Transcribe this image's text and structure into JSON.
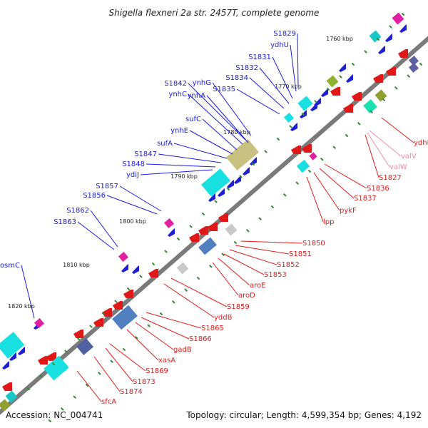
{
  "title": "Shigella flexneri 2a str. 2457T, complete genome",
  "footer": {
    "accession": "Accession: NC_004741",
    "topology": "Topology: circular; Length: 4,599,354 bp; Genes: 4,192"
  },
  "colors": {
    "forward_label": "#1a1ae6",
    "reverse_label": "#e61a1a",
    "rna_label": "#f08ca0",
    "backbone": "#7a7a7a",
    "ticks": "#2e8b2e"
  },
  "scale_labels": [
    "1760 kbp",
    "1770 kbp",
    "1780 kbp",
    "1790 kbp",
    "1800 kbp",
    "1810 kbp",
    "1820 kbp"
  ],
  "forward_genes": [
    "S1829",
    "ydhU",
    "S1831",
    "S1832",
    "S1834",
    "S1835",
    "ynhG",
    "S1842",
    "ynhA",
    "ynhC",
    "sufC",
    "ynhE",
    "sufA",
    "S1847",
    "S1848",
    "ydiJ",
    "S1857",
    "S1856",
    "S1862",
    "S1863",
    "osmC"
  ],
  "reverse_genes": [
    "ydhE",
    "valV",
    "valW",
    "S1827",
    "S1836",
    "S1837",
    "pykF",
    "lpp",
    "S1850",
    "S1851",
    "S1852",
    "S1853",
    "aroE",
    "aroD",
    "S1859",
    "yddB",
    "S1865",
    "S1866",
    "gadB",
    "xasA",
    "S1869",
    "S1873",
    "S1874",
    "sfcA"
  ],
  "rna_genes": [
    "valV",
    "valW"
  ]
}
